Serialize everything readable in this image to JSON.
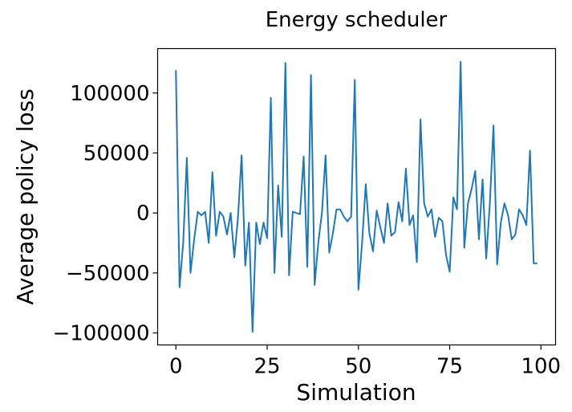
{
  "chart_data": {
    "type": "line",
    "title": "Energy scheduler",
    "xlabel": "Simulation",
    "ylabel": "Average policy loss",
    "xlim": [
      -5,
      104
    ],
    "ylim": [
      -110000,
      137000
    ],
    "x_ticks": [
      0,
      25,
      50,
      75,
      100
    ],
    "x_tick_labels": [
      "0",
      "25",
      "50",
      "75",
      "100"
    ],
    "y_ticks": [
      -100000,
      -50000,
      0,
      50000,
      100000
    ],
    "y_tick_labels": [
      "−100000",
      "−50000",
      "0",
      "50000",
      "100000"
    ],
    "grid": false,
    "color": "#1f77b4",
    "series": [
      {
        "x": [
          0,
          1,
          2,
          3,
          4,
          5,
          6,
          7,
          8,
          9,
          10,
          11,
          12,
          13,
          14,
          15,
          16,
          17,
          18,
          19,
          20,
          21,
          22,
          23,
          24,
          25,
          26,
          27,
          28,
          29,
          30,
          31,
          32,
          33,
          34,
          35,
          36,
          37,
          38,
          39,
          40,
          41,
          42,
          43,
          44,
          45,
          46,
          47,
          48,
          49,
          50,
          51,
          52,
          53,
          54,
          55,
          56,
          57,
          58,
          59,
          60,
          61,
          62,
          63,
          64,
          65,
          66,
          67,
          68,
          69,
          70,
          71,
          72,
          73,
          74,
          75,
          76,
          77,
          78,
          79,
          80,
          81,
          82,
          83,
          84,
          85,
          86,
          87,
          88,
          89,
          90,
          91,
          92,
          93,
          94,
          95,
          96,
          97,
          98,
          99
        ],
        "y": [
          119000,
          -62000,
          -25000,
          46000,
          -50000,
          -22000,
          1000,
          -2000,
          1000,
          -25000,
          34000,
          -19000,
          1000,
          -3000,
          -18000,
          0,
          -37000,
          -4000,
          48000,
          -44000,
          -8000,
          -99000,
          -8000,
          -26000,
          -8000,
          -21000,
          96000,
          -50000,
          23000,
          -20000,
          125000,
          -52000,
          1000,
          0,
          -1000,
          47000,
          -45000,
          115000,
          -60000,
          -25000,
          0,
          48000,
          -33000,
          -17000,
          3000,
          3000,
          -3000,
          -7000,
          -3000,
          111000,
          -64000,
          -25000,
          24000,
          -17000,
          -32000,
          2000,
          -12000,
          -25000,
          8000,
          -19000,
          -16000,
          9000,
          -7000,
          37000,
          -10000,
          -2000,
          -41000,
          78000,
          8000,
          -3000,
          3000,
          -20000,
          -4000,
          -7000,
          -35000,
          -49000,
          13000,
          3000,
          126000,
          -29000,
          8000,
          20000,
          35000,
          -22000,
          28000,
          -38000,
          8000,
          73000,
          -43000,
          -8000,
          8000,
          -2000,
          -22000,
          -18000,
          3000,
          -2000,
          -10000,
          52000,
          -42000,
          -42000
        ]
      }
    ]
  }
}
